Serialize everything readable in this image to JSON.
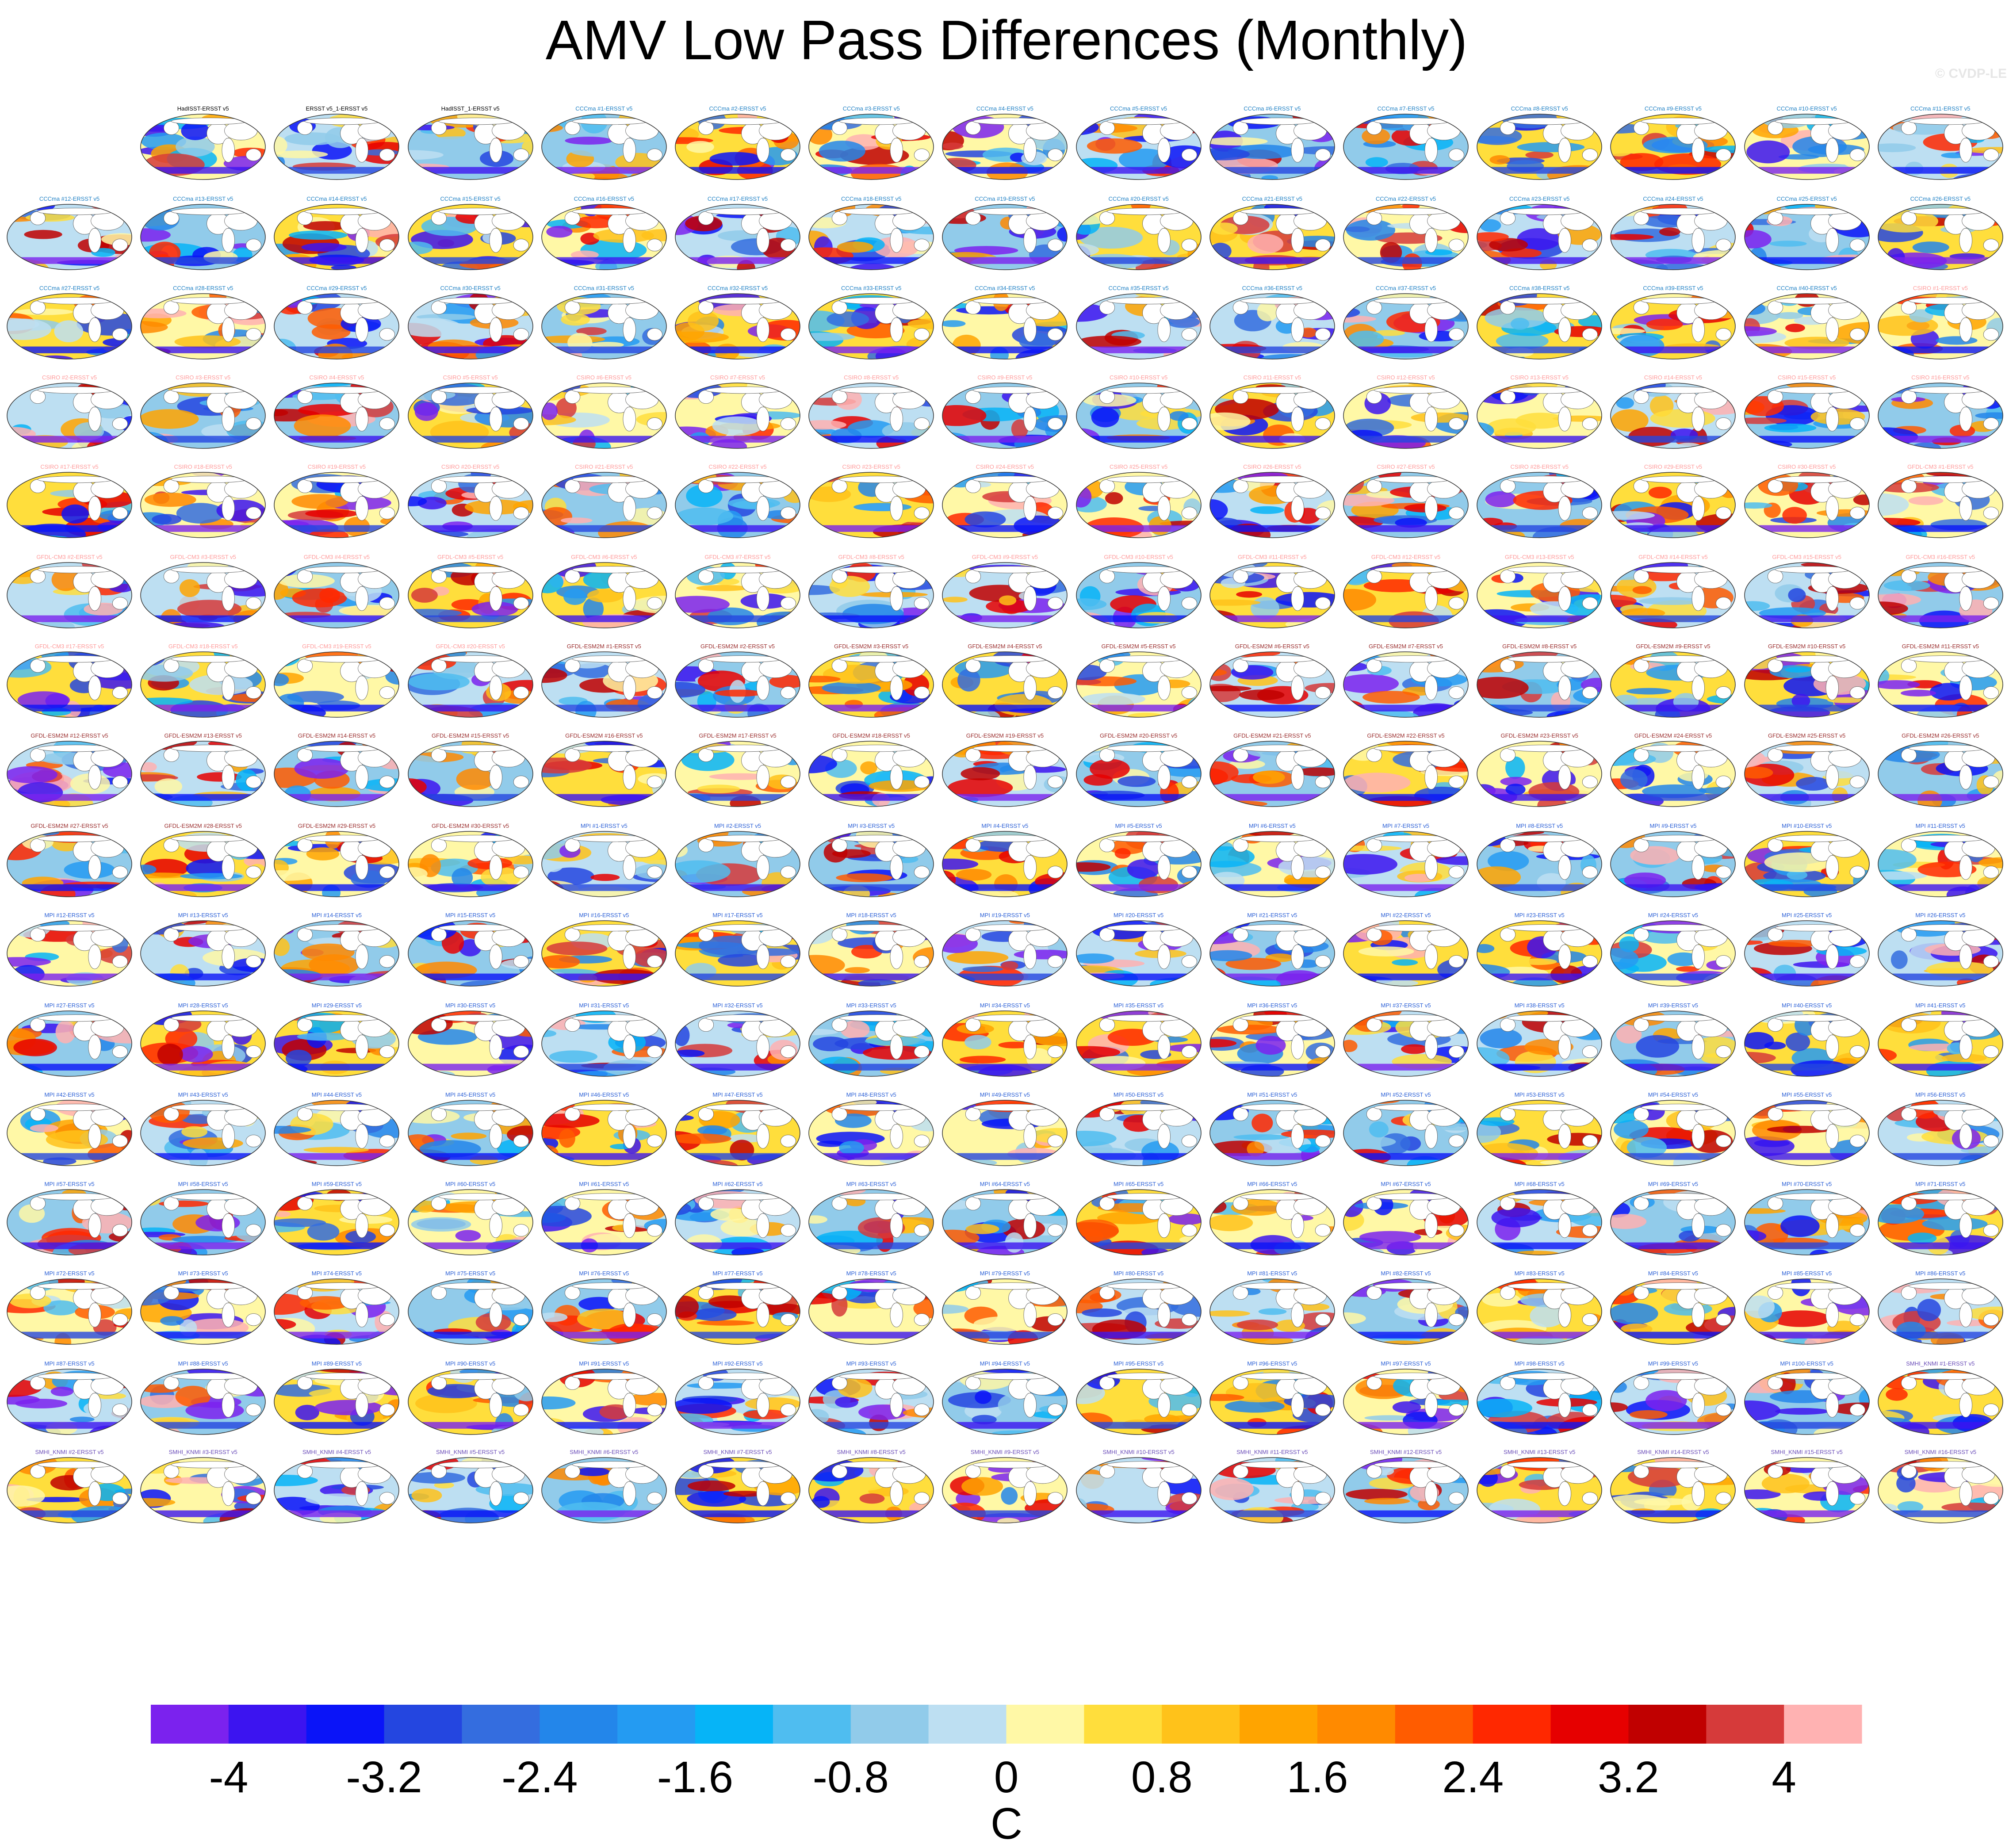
{
  "title": "AMV Low Pass Differences (Monthly)",
  "watermark": "© CVDP-LE",
  "chart_data": {
    "type": "heatmap",
    "title": "AMV Low Pass Differences (Monthly)",
    "units": "C",
    "colorbar": {
      "ticks": [
        "-4",
        "-3.2",
        "-2.4",
        "-1.6",
        "-0.8",
        "0",
        "0.8",
        "1.6",
        "2.4",
        "3.2",
        "4"
      ],
      "range": [
        -4.4,
        4.4
      ],
      "step": 0.4,
      "colors": [
        "#7b22ee",
        "#3c14f0",
        "#0a14f8",
        "#2446e0",
        "#346ddf",
        "#2386ea",
        "#249bf2",
        "#06b4f7",
        "#4fbdf0",
        "#91cbea",
        "#bddff2",
        "#fff8a6",
        "#ffde3c",
        "#ffc21a",
        "#ffa400",
        "#ff8a00",
        "#ff5c00",
        "#ff2800",
        "#e60000",
        "#c00000",
        "#d63a3a",
        "#ffb2b2"
      ]
    },
    "panel_titles": [
      "HadISST-ERSST v5",
      "ERSST v5_1-ERSST v5",
      "HadISST_1-ERSST v5",
      "CCCma #1-ERSST v5",
      "CCCma #2-ERSST v5",
      "CCCma #3-ERSST v5",
      "CCCma #4-ERSST v5",
      "CCCma #5-ERSST v5",
      "CCCma #6-ERSST v5",
      "CCCma #7-ERSST v5",
      "CCCma #8-ERSST v5",
      "CCCma #9-ERSST v5",
      "CCCma #10-ERSST v5",
      "CCCma #11-ERSST v5",
      "CCCma #12-ERSST v5",
      "CCCma #13-ERSST v5",
      "CCCma #14-ERSST v5",
      "CCCma #15-ERSST v5",
      "CCCma #16-ERSST v5",
      "CCCma #17-ERSST v5",
      "CCCma #18-ERSST v5",
      "CCCma #19-ERSST v5",
      "CCCma #20-ERSST v5",
      "CCCma #21-ERSST v5",
      "CCCma #22-ERSST v5",
      "CCCma #23-ERSST v5",
      "CCCma #24-ERSST v5",
      "CCCma #25-ERSST v5",
      "CCCma #26-ERSST v5",
      "CCCma #27-ERSST v5",
      "CCCma #28-ERSST v5",
      "CCCma #29-ERSST v5",
      "CCCma #30-ERSST v5",
      "CCCma #31-ERSST v5",
      "CCCma #32-ERSST v5",
      "CCCma #33-ERSST v5",
      "CCCma #34-ERSST v5",
      "CCCma #35-ERSST v5",
      "CCCma #36-ERSST v5",
      "CCCma #37-ERSST v5",
      "CCCma #38-ERSST v5",
      "CCCma #39-ERSST v5",
      "CCCma #40-ERSST v5",
      "CSIRO #1-ERSST v5",
      "CSIRO #2-ERSST v5",
      "CSIRO #3-ERSST v5",
      "CSIRO #4-ERSST v5",
      "CSIRO #5-ERSST v5",
      "CSIRO #6-ERSST v5",
      "CSIRO #7-ERSST v5",
      "CSIRO #8-ERSST v5",
      "CSIRO #9-ERSST v5",
      "CSIRO #10-ERSST v5",
      "CSIRO #11-ERSST v5",
      "CSIRO #12-ERSST v5",
      "CSIRO #13-ERSST v5",
      "CSIRO #14-ERSST v5",
      "CSIRO #15-ERSST v5",
      "CSIRO #16-ERSST v5",
      "CSIRO #17-ERSST v5",
      "CSIRO #18-ERSST v5",
      "CSIRO #19-ERSST v5",
      "CSIRO #20-ERSST v5",
      "CSIRO #21-ERSST v5",
      "CSIRO #22-ERSST v5",
      "CSIRO #23-ERSST v5",
      "CSIRO #24-ERSST v5",
      "CSIRO #25-ERSST v5",
      "CSIRO #26-ERSST v5",
      "CSIRO #27-ERSST v5",
      "CSIRO #28-ERSST v5",
      "CSIRO #29-ERSST v5",
      "CSIRO #30-ERSST v5",
      "GFDL-CM3 #1-ERSST v5",
      "GFDL-CM3 #2-ERSST v5",
      "GFDL-CM3 #3-ERSST v5",
      "GFDL-CM3 #4-ERSST v5",
      "GFDL-CM3 #5-ERSST v5",
      "GFDL-CM3 #6-ERSST v5",
      "GFDL-CM3 #7-ERSST v5",
      "GFDL-CM3 #8-ERSST v5",
      "GFDL-CM3 #9-ERSST v5",
      "GFDL-CM3 #10-ERSST v5",
      "GFDL-CM3 #11-ERSST v5",
      "GFDL-CM3 #12-ERSST v5",
      "GFDL-CM3 #13-ERSST v5",
      "GFDL-CM3 #14-ERSST v5",
      "GFDL-CM3 #15-ERSST v5",
      "GFDL-CM3 #16-ERSST v5",
      "GFDL-CM3 #17-ERSST v5",
      "GFDL-CM3 #18-ERSST v5",
      "GFDL-CM3 #19-ERSST v5",
      "GFDL-CM3 #20-ERSST v5",
      "GFDL-ESM2M #1-ERSST v5",
      "GFDL-ESM2M #2-ERSST v5",
      "GFDL-ESM2M #3-ERSST v5",
      "GFDL-ESM2M #4-ERSST v5",
      "GFDL-ESM2M #5-ERSST v5",
      "GFDL-ESM2M #6-ERSST v5",
      "GFDL-ESM2M #7-ERSST v5",
      "GFDL-ESM2M #8-ERSST v5",
      "GFDL-ESM2M #9-ERSST v5",
      "GFDL-ESM2M #10-ERSST v5",
      "GFDL-ESM2M #11-ERSST v5",
      "GFDL-ESM2M #12-ERSST v5",
      "GFDL-ESM2M #13-ERSST v5",
      "GFDL-ESM2M #14-ERSST v5",
      "GFDL-ESM2M #15-ERSST v5",
      "GFDL-ESM2M #16-ERSST v5",
      "GFDL-ESM2M #17-ERSST v5",
      "GFDL-ESM2M #18-ERSST v5",
      "GFDL-ESM2M #19-ERSST v5",
      "GFDL-ESM2M #20-ERSST v5",
      "GFDL-ESM2M #21-ERSST v5",
      "GFDL-ESM2M #22-ERSST v5",
      "GFDL-ESM2M #23-ERSST v5",
      "GFDL-ESM2M #24-ERSST v5",
      "GFDL-ESM2M #25-ERSST v5",
      "GFDL-ESM2M #26-ERSST v5",
      "GFDL-ESM2M #27-ERSST v5",
      "GFDL-ESM2M #28-ERSST v5",
      "GFDL-ESM2M #29-ERSST v5",
      "GFDL-ESM2M #30-ERSST v5",
      "MPI #1-ERSST v5",
      "MPI #2-ERSST v5",
      "MPI #3-ERSST v5",
      "MPI #4-ERSST v5",
      "MPI #5-ERSST v5",
      "MPI #6-ERSST v5",
      "MPI #7-ERSST v5",
      "MPI #8-ERSST v5",
      "MPI #9-ERSST v5",
      "MPI #10-ERSST v5",
      "MPI #11-ERSST v5",
      "MPI #12-ERSST v5",
      "MPI #13-ERSST v5",
      "MPI #14-ERSST v5",
      "MPI #15-ERSST v5",
      "MPI #16-ERSST v5",
      "MPI #17-ERSST v5",
      "MPI #18-ERSST v5",
      "MPI #19-ERSST v5",
      "MPI #20-ERSST v5",
      "MPI #21-ERSST v5",
      "MPI #22-ERSST v5",
      "MPI #23-ERSST v5",
      "MPI #24-ERSST v5",
      "MPI #25-ERSST v5",
      "MPI #26-ERSST v5",
      "MPI #27-ERSST v5",
      "MPI #28-ERSST v5",
      "MPI #29-ERSST v5",
      "MPI #30-ERSST v5",
      "MPI #31-ERSST v5",
      "MPI #32-ERSST v5",
      "MPI #33-ERSST v5",
      "MPI #34-ERSST v5",
      "MPI #35-ERSST v5",
      "MPI #36-ERSST v5",
      "MPI #37-ERSST v5",
      "MPI #38-ERSST v5",
      "MPI #39-ERSST v5",
      "MPI #40-ERSST v5",
      "MPI #41-ERSST v5",
      "MPI #42-ERSST v5",
      "MPI #43-ERSST v5",
      "MPI #44-ERSST v5",
      "MPI #45-ERSST v5",
      "MPI #46-ERSST v5",
      "MPI #47-ERSST v5",
      "MPI #48-ERSST v5",
      "MPI #49-ERSST v5",
      "MPI #50-ERSST v5",
      "MPI #51-ERSST v5",
      "MPI #52-ERSST v5",
      "MPI #53-ERSST v5",
      "MPI #54-ERSST v5",
      "MPI #55-ERSST v5",
      "MPI #56-ERSST v5",
      "MPI #57-ERSST v5",
      "MPI #58-ERSST v5",
      "MPI #59-ERSST v5",
      "MPI #60-ERSST v5",
      "MPI #61-ERSST v5",
      "MPI #62-ERSST v5",
      "MPI #63-ERSST v5",
      "MPI #64-ERSST v5",
      "MPI #65-ERSST v5",
      "MPI #66-ERSST v5",
      "MPI #67-ERSST v5",
      "MPI #68-ERSST v5",
      "MPI #69-ERSST v5",
      "MPI #70-ERSST v5",
      "MPI #71-ERSST v5",
      "MPI #72-ERSST v5",
      "MPI #73-ERSST v5",
      "MPI #74-ERSST v5",
      "MPI #75-ERSST v5",
      "MPI #76-ERSST v5",
      "MPI #77-ERSST v5",
      "MPI #78-ERSST v5",
      "MPI #79-ERSST v5",
      "MPI #80-ERSST v5",
      "MPI #81-ERSST v5",
      "MPI #82-ERSST v5",
      "MPI #83-ERSST v5",
      "MPI #84-ERSST v5",
      "MPI #85-ERSST v5",
      "MPI #86-ERSST v5",
      "MPI #87-ERSST v5",
      "MPI #88-ERSST v5",
      "MPI #89-ERSST v5",
      "MPI #90-ERSST v5",
      "MPI #91-ERSST v5",
      "MPI #92-ERSST v5",
      "MPI #93-ERSST v5",
      "MPI #94-ERSST v5",
      "MPI #95-ERSST v5",
      "MPI #96-ERSST v5",
      "MPI #97-ERSST v5",
      "MPI #98-ERSST v5",
      "MPI #99-ERSST v5",
      "MPI #100-ERSST v5",
      "SMHI_KNMI #1-ERSST v5",
      "SMHI_KNMI #2-ERSST v5",
      "SMHI_KNMI #3-ERSST v5",
      "SMHI_KNMI #4-ERSST v5",
      "SMHI_KNMI #5-ERSST v5",
      "SMHI_KNMI #6-ERSST v5",
      "SMHI_KNMI #7-ERSST v5",
      "SMHI_KNMI #8-ERSST v5",
      "SMHI_KNMI #9-ERSST v5",
      "SMHI_KNMI #10-ERSST v5",
      "SMHI_KNMI #11-ERSST v5",
      "SMHI_KNMI #12-ERSST v5",
      "SMHI_KNMI #13-ERSST v5",
      "SMHI_KNMI #14-ERSST v5",
      "SMHI_KNMI #15-ERSST v5",
      "SMHI_KNMI #16-ERSST v5"
    ]
  }
}
